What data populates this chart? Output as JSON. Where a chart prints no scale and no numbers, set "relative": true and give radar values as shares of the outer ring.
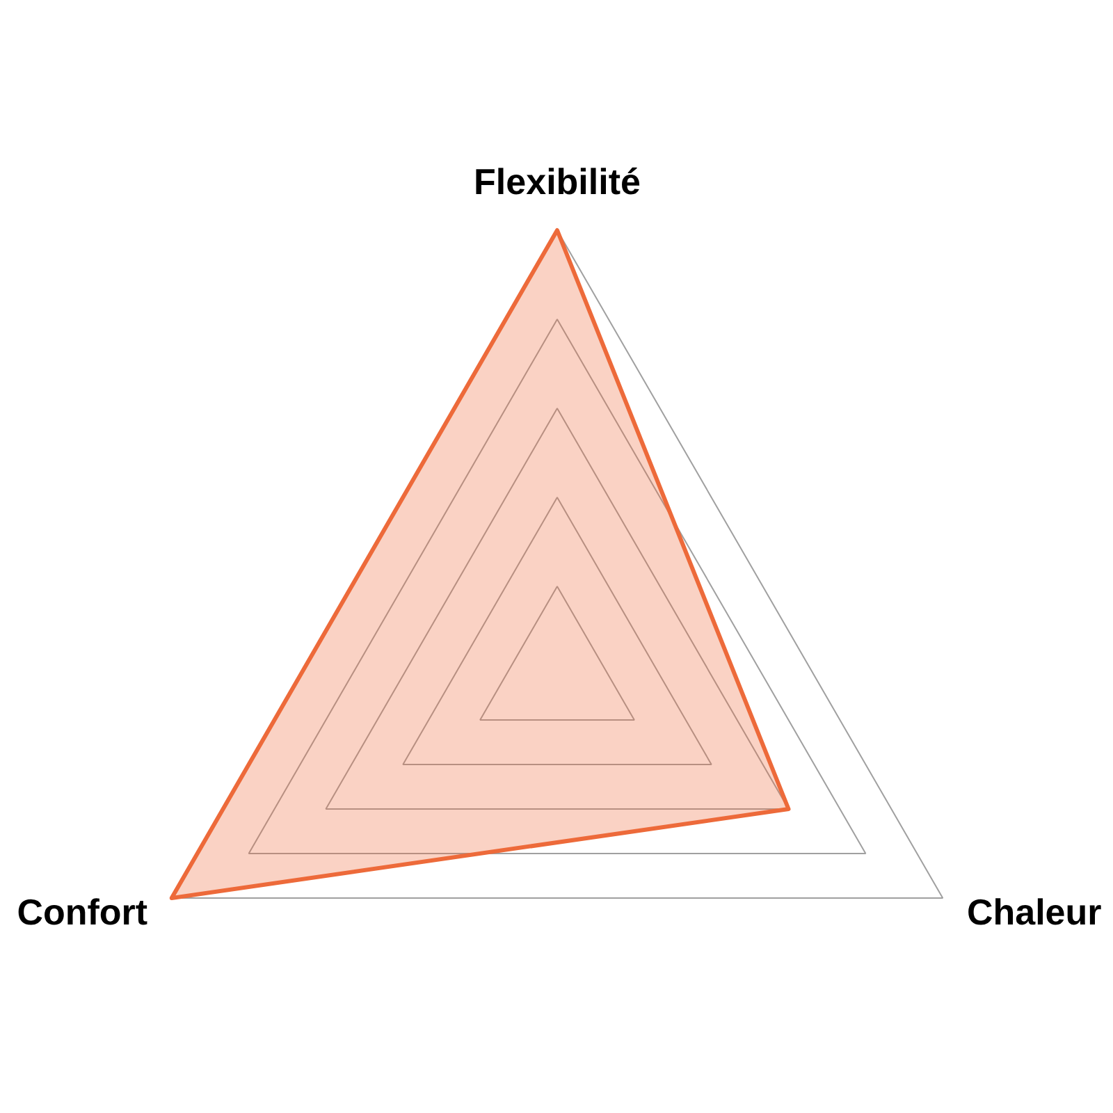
{
  "chart_data": {
    "type": "radar",
    "categories": [
      "Flexibilité",
      "Chaleur",
      "Confort"
    ],
    "series": [
      {
        "color": "#ed6a3a",
        "values": [
          1,
          0.6,
          1
        ]
      }
    ],
    "relative": true,
    "grid": true
  }
}
